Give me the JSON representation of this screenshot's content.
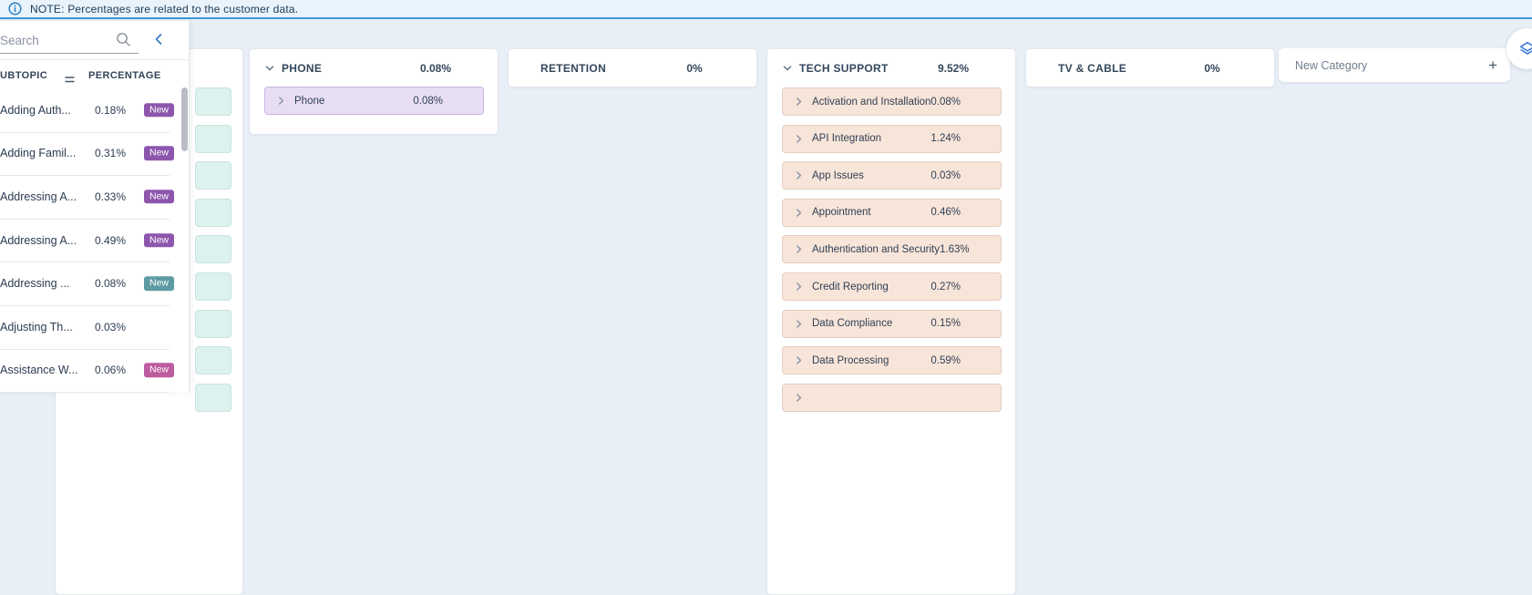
{
  "note_bar": {
    "text": "NOTE: Percentages are related to the customer data."
  },
  "sidebar": {
    "search_placeholder": "Search",
    "columns": {
      "subtopic": "UBTOPIC",
      "percentage": "PERCENTAGE"
    },
    "items": [
      {
        "label": "Adding Auth...",
        "percentage": "0.18%",
        "badge": "New",
        "badge_color": "#8d56ad"
      },
      {
        "label": "Adding Famil...",
        "percentage": "0.31%",
        "badge": "New",
        "badge_color": "#8d56ad"
      },
      {
        "label": "Addressing A...",
        "percentage": "0.33%",
        "badge": "New",
        "badge_color": "#8d56ad"
      },
      {
        "label": "Addressing A...",
        "percentage": "0.49%",
        "badge": "New",
        "badge_color": "#8d56ad"
      },
      {
        "label": "Addressing ...",
        "percentage": "0.08%",
        "badge": "New",
        "badge_color": "#5d9aa2"
      },
      {
        "label": "Adjusting Th...",
        "percentage": "0.03%",
        "badge": null,
        "badge_color": null
      },
      {
        "label": "Assistance W...",
        "percentage": "0.06%",
        "badge": "New",
        "badge_color": "#bd5c9f"
      }
    ]
  },
  "board": {
    "hidden_column": {
      "item_count": 9,
      "item_bg": "#ddf1ee",
      "item_border": "#c9e4e0"
    },
    "categories": [
      {
        "name": "PHONE",
        "percentage": "0.08%",
        "expanded": true,
        "item_bg": "#e8def3",
        "item_border": "#c7b4e2",
        "items": [
          {
            "label": "Phone",
            "percentage": "0.08%"
          }
        ],
        "overflow_items": 0
      },
      {
        "name": "RETENTION",
        "percentage": "0%",
        "expanded": false,
        "item_bg": null,
        "item_border": null,
        "items": [],
        "overflow_items": 0
      },
      {
        "name": "TECH SUPPORT",
        "percentage": "9.52%",
        "expanded": true,
        "item_bg": "#f8e5d9",
        "item_border": "#e3cdc0",
        "items": [
          {
            "label": "Activation and Installation",
            "percentage": "0.08%"
          },
          {
            "label": "API Integration",
            "percentage": "1.24%"
          },
          {
            "label": "App Issues",
            "percentage": "0.03%"
          },
          {
            "label": "Appointment",
            "percentage": "0.46%"
          },
          {
            "label": "Authentication and Security",
            "percentage": "1.63%"
          },
          {
            "label": "Credit Reporting",
            "percentage": "0.27%"
          },
          {
            "label": "Data Compliance",
            "percentage": "0.15%"
          },
          {
            "label": "Data Processing",
            "percentage": "0.59%"
          }
        ],
        "overflow_items": 1
      },
      {
        "name": "TV & CABLE",
        "percentage": "0%",
        "expanded": false,
        "item_bg": null,
        "item_border": null,
        "items": [],
        "overflow_items": 0
      }
    ],
    "new_category": {
      "label": "New Category",
      "add_icon": "+"
    }
  }
}
